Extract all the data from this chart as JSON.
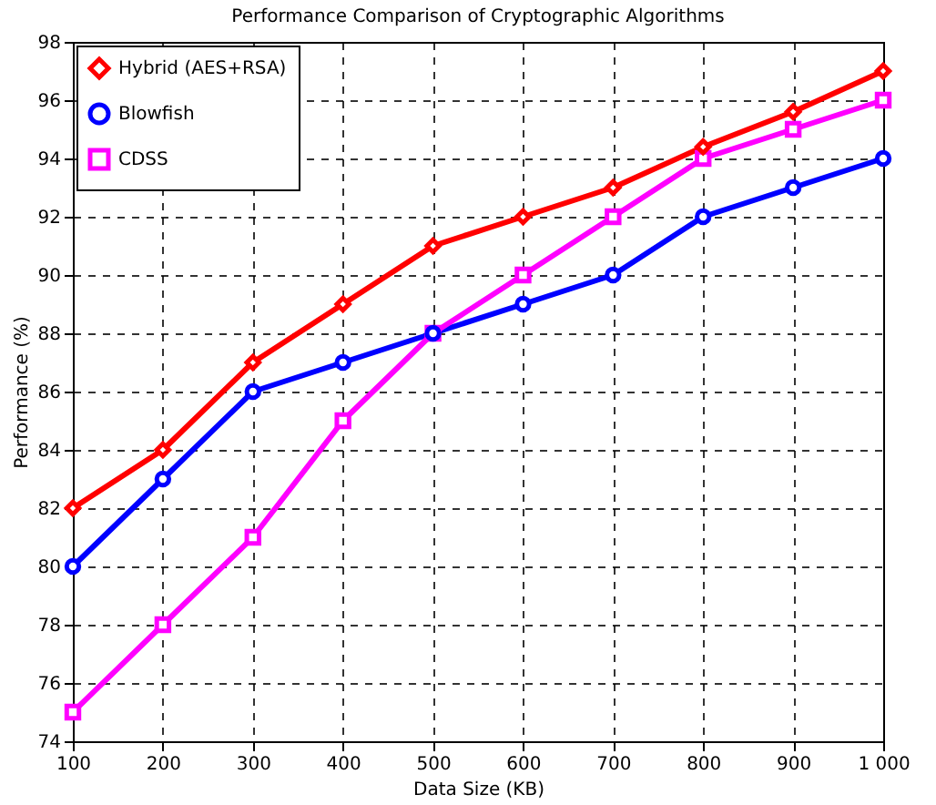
{
  "chart_data": {
    "type": "line",
    "title": "Performance Comparison of Cryptographic Algorithms",
    "xlabel": "Data Size (KB)",
    "ylabel": "Performance (%)",
    "x": [
      100,
      200,
      300,
      400,
      500,
      600,
      700,
      800,
      900,
      1000
    ],
    "series": [
      {
        "name": "Hybrid (AES+RSA)",
        "color": "#ff0000",
        "marker": "diamond",
        "values": [
          82,
          84,
          87,
          89,
          91,
          92,
          93,
          94.4,
          95.6,
          97
        ]
      },
      {
        "name": "Blowfish",
        "color": "#0000ff",
        "marker": "circle",
        "values": [
          80,
          83,
          86,
          87,
          88,
          89,
          90,
          92,
          93,
          94
        ]
      },
      {
        "name": "CDSS",
        "color": "#ff00ff",
        "marker": "square",
        "values": [
          75,
          78,
          81,
          85,
          88,
          90,
          92,
          94,
          95,
          96
        ]
      }
    ],
    "xlim": [
      100,
      1000
    ],
    "xticks": [
      100,
      200,
      300,
      400,
      500,
      600,
      700,
      800,
      900,
      {
        "value": 1000,
        "label": "1 000"
      }
    ],
    "ylim": [
      74,
      98
    ],
    "yticks": [
      74,
      76,
      78,
      80,
      82,
      84,
      86,
      88,
      90,
      92,
      94,
      96,
      98
    ],
    "grid": true,
    "legend": "top left",
    "line_style": "solid"
  }
}
